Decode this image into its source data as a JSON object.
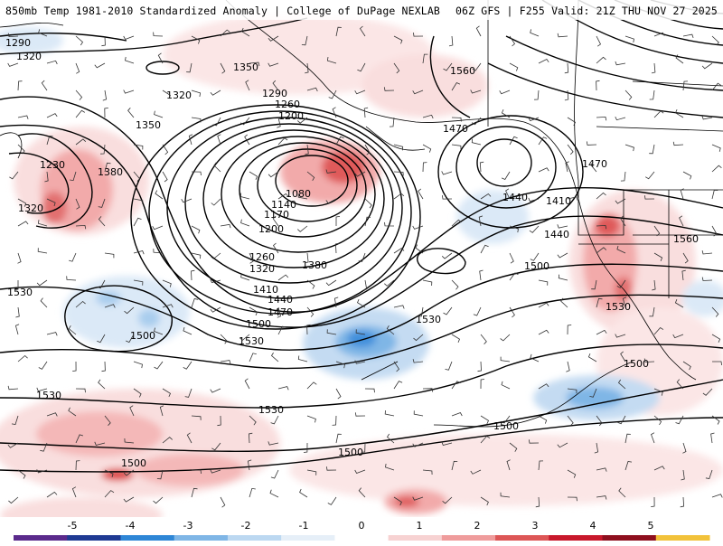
{
  "header": {
    "title_left": "850mb Temp 1981-2010 Standardized Anomaly | College of DuPage NEXLAB",
    "title_right": "06Z GFS | F255 Valid: 21Z THU NOV 27 2025"
  },
  "map": {
    "field": "850mb temperature standardized anomaly",
    "contour_field": "850mb geopotential height",
    "contour_labels": [
      "1290",
      "1320",
      "1350",
      "1320",
      "1350",
      "1380",
      "1290",
      "1260",
      "1200",
      "1230",
      "1320",
      "1080",
      "1140",
      "1170",
      "1200",
      "1260",
      "1320",
      "1380",
      "1410",
      "1440",
      "1470",
      "1500",
      "1530",
      "1560",
      "1470",
      "1440",
      "1410",
      "1440",
      "1500",
      "1560",
      "1530",
      "1500",
      "1530",
      "1470",
      "1530",
      "1530",
      "1500",
      "1530",
      "1500",
      "1500",
      "1500"
    ],
    "colors": {
      "cold_deep": "#1565c8",
      "cold_mid": "#3f8fdc",
      "cold_light": "#a9cdee",
      "cold_faint": "#dbe9f7",
      "warm_faint": "#f9dede",
      "warm_light": "#f2aaaa",
      "warm_mid": "#df5a5a",
      "warm_deep": "#c41a2e",
      "contour": "#000000",
      "coast": "#000000"
    }
  },
  "colorbar": {
    "ticks": [
      "-5",
      "-4",
      "-3",
      "-2",
      "-1",
      "0",
      "1",
      "2",
      "3",
      "4",
      "5"
    ],
    "colors": [
      "#5b2a8c",
      "#1f3a93",
      "#2e86d6",
      "#7fb6e6",
      "#bcd8f1",
      "#e6eff8",
      "#ffffff",
      "#f7d2d2",
      "#ef9c9c",
      "#dd5656",
      "#c8182b",
      "#8e0f1e",
      "#f2c23a"
    ]
  }
}
